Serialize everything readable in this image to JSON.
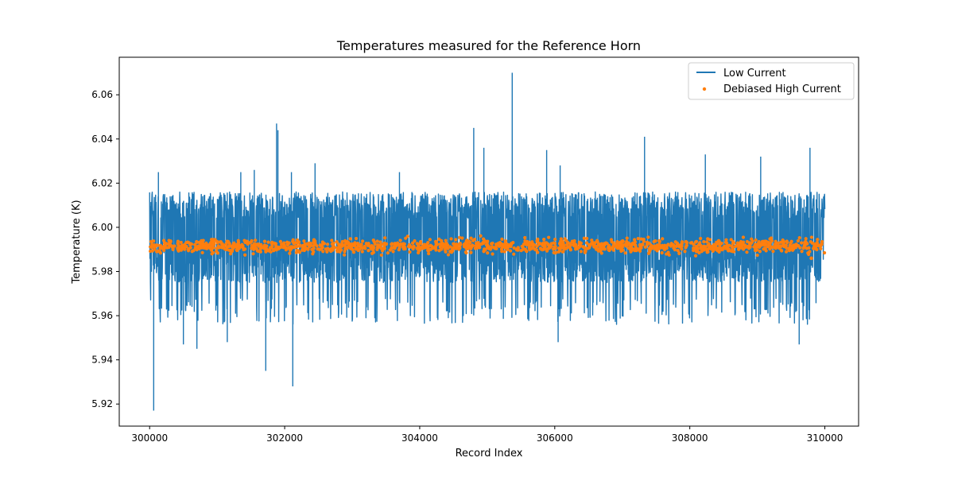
{
  "chart_data": {
    "type": "line+scatter",
    "title": "Temperatures measured for the Reference Horn",
    "xlabel": "Record Index",
    "ylabel": "Temperature (K)",
    "xlim": [
      299550,
      310500
    ],
    "ylim": [
      5.91,
      6.077
    ],
    "xticks": [
      300000,
      302000,
      304000,
      306000,
      308000,
      310000
    ],
    "xtick_labels": [
      "300000",
      "302000",
      "304000",
      "306000",
      "308000",
      "310000"
    ],
    "yticks": [
      5.92,
      5.94,
      5.96,
      5.98,
      6.0,
      6.02,
      6.04,
      6.06
    ],
    "ytick_labels": [
      "5.92",
      "5.94",
      "5.96",
      "5.98",
      "6.00",
      "6.02",
      "6.04",
      "6.06"
    ],
    "legend_position": "top-right",
    "series": [
      {
        "name": "Low Current",
        "kind": "line",
        "color": "#1f77b4",
        "x_range": [
          300000,
          310000
        ],
        "n_points": 10000,
        "base_level": 5.993,
        "band_range": [
          5.97,
          6.016
        ],
        "spikes": [
          {
            "x": 300060,
            "y": 5.917
          },
          {
            "x": 300130,
            "y": 6.025
          },
          {
            "x": 300500,
            "y": 5.947
          },
          {
            "x": 300700,
            "y": 5.945
          },
          {
            "x": 301150,
            "y": 5.948
          },
          {
            "x": 301350,
            "y": 6.025
          },
          {
            "x": 301550,
            "y": 6.026
          },
          {
            "x": 301720,
            "y": 5.935
          },
          {
            "x": 301880,
            "y": 6.047
          },
          {
            "x": 301900,
            "y": 6.044
          },
          {
            "x": 302100,
            "y": 6.025
          },
          {
            "x": 302120,
            "y": 5.928
          },
          {
            "x": 302450,
            "y": 6.029
          },
          {
            "x": 303700,
            "y": 6.025
          },
          {
            "x": 304800,
            "y": 6.045
          },
          {
            "x": 304950,
            "y": 6.036
          },
          {
            "x": 305370,
            "y": 6.07
          },
          {
            "x": 305880,
            "y": 6.035
          },
          {
            "x": 306080,
            "y": 6.028
          },
          {
            "x": 306050,
            "y": 5.948
          },
          {
            "x": 307330,
            "y": 6.041
          },
          {
            "x": 308230,
            "y": 6.033
          },
          {
            "x": 309050,
            "y": 6.032
          },
          {
            "x": 309620,
            "y": 5.947
          },
          {
            "x": 309780,
            "y": 6.036
          }
        ]
      },
      {
        "name": "Debiased High Current",
        "kind": "scatter",
        "color": "#ff7f0e",
        "x_range": [
          300000,
          310000
        ],
        "center": 5.9915,
        "spread": 0.0015,
        "outliers": [
          {
            "x": 309800,
            "y": 5.986
          }
        ]
      }
    ]
  }
}
